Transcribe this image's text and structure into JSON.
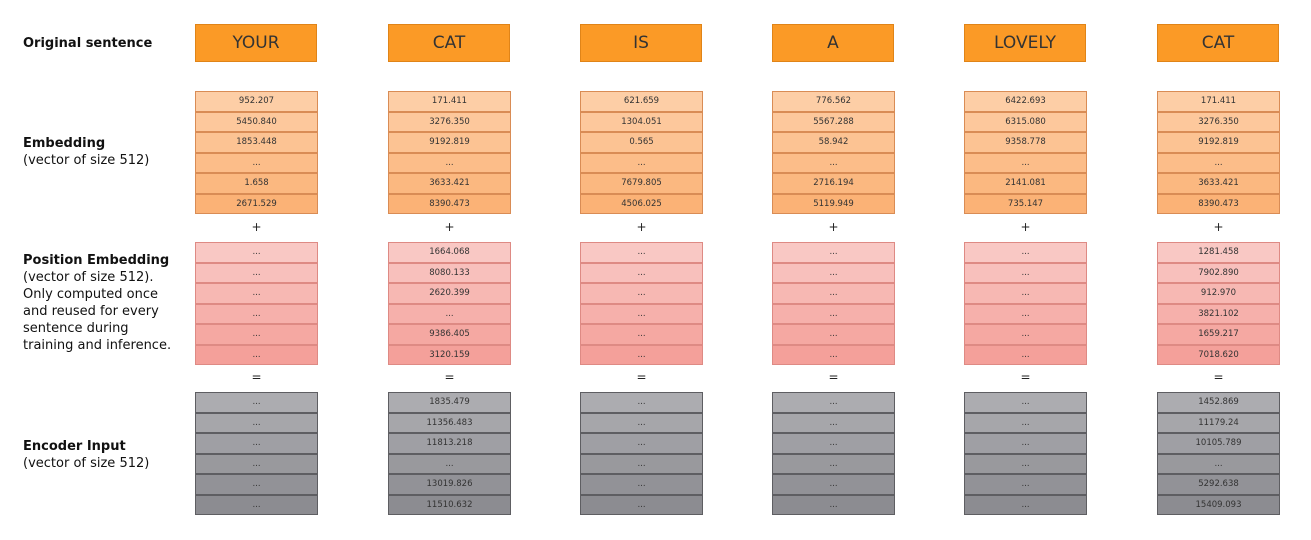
{
  "labels": {
    "original": "Original sentence",
    "embedding": {
      "title": "Embedding",
      "lines": [
        "(vector of size 512)"
      ]
    },
    "position": {
      "title": "Position Embedding",
      "lines": [
        "(vector of size 512).",
        "Only computed once",
        "and reused for every",
        "sentence during",
        "training and inference."
      ]
    },
    "encoder": {
      "title": "Encoder Input",
      "lines": [
        "(vector of size 512)"
      ]
    }
  },
  "plus": "+",
  "equals": "=",
  "columns": [
    {
      "token": "YOUR",
      "embedding": [
        "952.207",
        "5450.840",
        "1853.448",
        "...",
        "1.658",
        "2671.529"
      ],
      "position": [
        "...",
        "...",
        "...",
        "...",
        "...",
        "..."
      ],
      "encoder": [
        "...",
        "...",
        "...",
        "...",
        "...",
        "..."
      ]
    },
    {
      "token": "CAT",
      "embedding": [
        "171.411",
        "3276.350",
        "9192.819",
        "...",
        "3633.421",
        "8390.473"
      ],
      "position": [
        "1664.068",
        "8080.133",
        "2620.399",
        "...",
        "9386.405",
        "3120.159"
      ],
      "encoder": [
        "1835.479",
        "11356.483",
        "11813.218",
        "...",
        "13019.826",
        "11510.632"
      ]
    },
    {
      "token": "IS",
      "embedding": [
        "621.659",
        "1304.051",
        "0.565",
        "...",
        "7679.805",
        "4506.025"
      ],
      "position": [
        "...",
        "...",
        "...",
        "...",
        "...",
        "..."
      ],
      "encoder": [
        "...",
        "...",
        "...",
        "...",
        "...",
        "..."
      ]
    },
    {
      "token": "A",
      "embedding": [
        "776.562",
        "5567.288",
        "58.942",
        "...",
        "2716.194",
        "5119.949"
      ],
      "position": [
        "...",
        "...",
        "...",
        "...",
        "...",
        "..."
      ],
      "encoder": [
        "...",
        "...",
        "...",
        "...",
        "...",
        "..."
      ]
    },
    {
      "token": "LOVELY",
      "embedding": [
        "6422.693",
        "6315.080",
        "9358.778",
        "...",
        "2141.081",
        "735.147"
      ],
      "position": [
        "...",
        "...",
        "...",
        "...",
        "...",
        "..."
      ],
      "encoder": [
        "...",
        "...",
        "...",
        "...",
        "...",
        "..."
      ]
    },
    {
      "token": "CAT",
      "embedding": [
        "171.411",
        "3276.350",
        "9192.819",
        "...",
        "3633.421",
        "8390.473"
      ],
      "position": [
        "1281.458",
        "7902.890",
        "912.970",
        "3821.102",
        "1659.217",
        "7018.620"
      ],
      "encoder": [
        "1452.869",
        "11179.24",
        "10105.789",
        "...",
        "5292.638",
        "15409.093"
      ]
    }
  ]
}
